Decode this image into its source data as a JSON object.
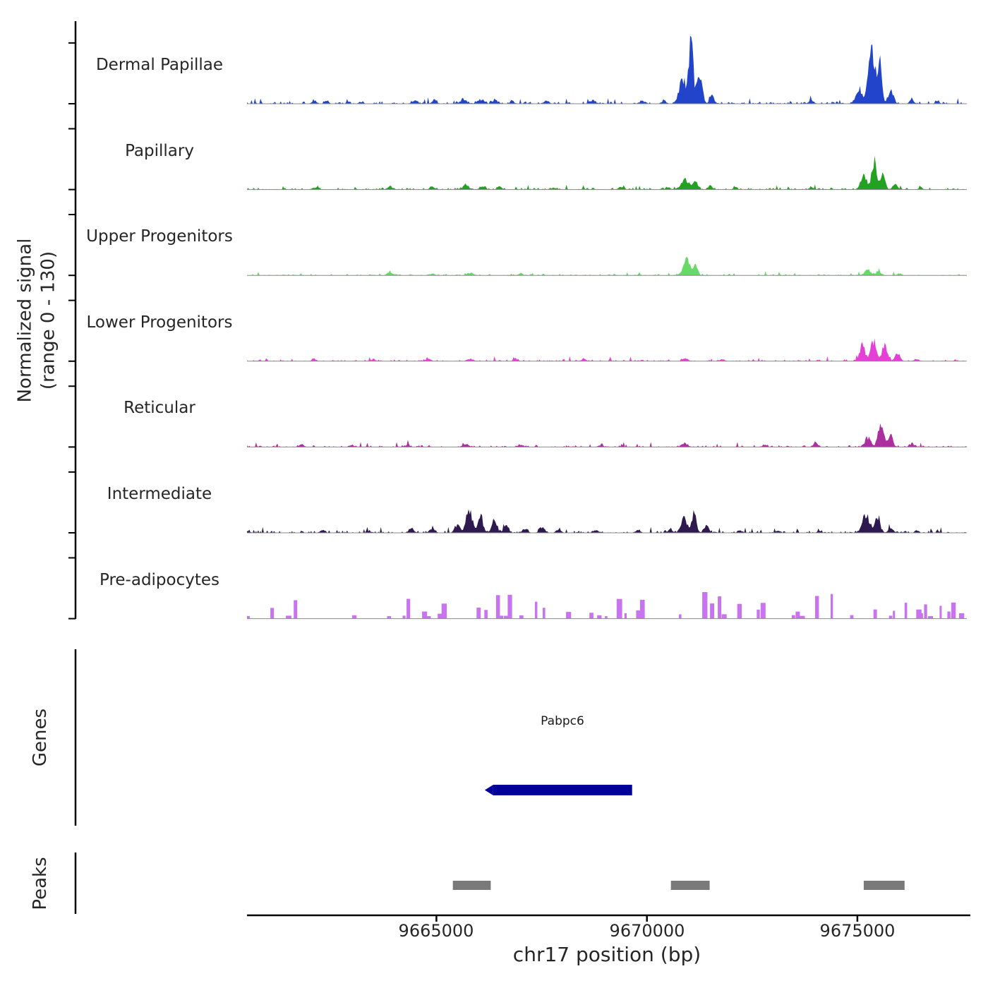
{
  "chart_data": {
    "type": "area",
    "title": "",
    "x_axis": {
      "label": "chr17 position (bp)",
      "range_bp": [
        9660500,
        9677600
      ],
      "ticks": [
        {
          "bp": 9665000,
          "label": "9665000"
        },
        {
          "bp": 9670000,
          "label": "9670000"
        },
        {
          "bp": 9675000,
          "label": "9675000"
        }
      ]
    },
    "y_axis": {
      "label": "Normalized signal\n(range 0 - 130)",
      "range": [
        0,
        130
      ],
      "tick_values": [
        0,
        100
      ]
    },
    "tracks": [
      {
        "name": "Dermal Papillae",
        "color": "#2244cb",
        "noise_amp": 3.5,
        "noise_density": 0.5,
        "bumps": [
          [
            9662100,
            50,
            4
          ],
          [
            9662400,
            40,
            5
          ],
          [
            9663200,
            50,
            3
          ],
          [
            9664500,
            60,
            5
          ],
          [
            9664950,
            50,
            6
          ],
          [
            9665650,
            80,
            6
          ],
          [
            9666050,
            70,
            7
          ],
          [
            9666400,
            60,
            6
          ],
          [
            9666800,
            50,
            4
          ],
          [
            9667600,
            60,
            4
          ],
          [
            9668700,
            70,
            4
          ],
          [
            9669900,
            60,
            4
          ],
          [
            9670400,
            50,
            5
          ],
          [
            9670850,
            80,
            40
          ],
          [
            9671050,
            55,
            92
          ],
          [
            9671250,
            60,
            50
          ],
          [
            9671550,
            50,
            12
          ],
          [
            9673900,
            60,
            5
          ],
          [
            9675050,
            70,
            25
          ],
          [
            9675330,
            65,
            115
          ],
          [
            9675520,
            55,
            70
          ],
          [
            9675800,
            55,
            22
          ],
          [
            9676300,
            50,
            6
          ],
          [
            9676900,
            45,
            4
          ]
        ]
      },
      {
        "name": "Papillary",
        "color": "#22a122",
        "noise_amp": 3,
        "noise_density": 0.5,
        "bumps": [
          [
            9662100,
            50,
            3
          ],
          [
            9663900,
            60,
            5
          ],
          [
            9664900,
            60,
            4
          ],
          [
            9665700,
            80,
            6
          ],
          [
            9666100,
            60,
            5
          ],
          [
            9666500,
            50,
            4
          ],
          [
            9667800,
            60,
            3
          ],
          [
            9669400,
            60,
            4
          ],
          [
            9670500,
            50,
            4
          ],
          [
            9670900,
            90,
            16
          ],
          [
            9671150,
            60,
            12
          ],
          [
            9671500,
            50,
            6
          ],
          [
            9672100,
            50,
            4
          ],
          [
            9673900,
            50,
            3
          ],
          [
            9675150,
            70,
            22
          ],
          [
            9675400,
            60,
            48
          ],
          [
            9675600,
            55,
            26
          ],
          [
            9675900,
            50,
            10
          ],
          [
            9676500,
            45,
            4
          ]
        ]
      },
      {
        "name": "Upper Progenitors",
        "color": "#66d966",
        "noise_amp": 2.2,
        "noise_density": 0.42,
        "bumps": [
          [
            9663900,
            60,
            5
          ],
          [
            9664900,
            50,
            3
          ],
          [
            9665800,
            70,
            4
          ],
          [
            9667000,
            50,
            3
          ],
          [
            9670950,
            80,
            26
          ],
          [
            9671150,
            55,
            14
          ],
          [
            9675250,
            70,
            9
          ],
          [
            9675500,
            55,
            7
          ],
          [
            9676000,
            45,
            3
          ]
        ]
      },
      {
        "name": "Lower Progenitors",
        "color": "#e63fd8",
        "noise_amp": 2.8,
        "noise_density": 0.45,
        "bumps": [
          [
            9662100,
            45,
            3
          ],
          [
            9663500,
            50,
            3
          ],
          [
            9664800,
            55,
            4
          ],
          [
            9665800,
            60,
            4
          ],
          [
            9666900,
            50,
            3
          ],
          [
            9668500,
            50,
            3
          ],
          [
            9670900,
            60,
            4
          ],
          [
            9671800,
            45,
            3
          ],
          [
            9675120,
            65,
            26
          ],
          [
            9675380,
            60,
            36
          ],
          [
            9675650,
            60,
            30
          ],
          [
            9675950,
            55,
            14
          ],
          [
            9676400,
            45,
            4
          ]
        ]
      },
      {
        "name": "Reticular",
        "color": "#ab2f9e",
        "noise_amp": 2.8,
        "noise_density": 0.45,
        "bumps": [
          [
            9661800,
            45,
            4
          ],
          [
            9663000,
            45,
            3
          ],
          [
            9664300,
            50,
            3
          ],
          [
            9665700,
            60,
            4
          ],
          [
            9667000,
            55,
            4
          ],
          [
            9668900,
            50,
            3
          ],
          [
            9670900,
            70,
            6
          ],
          [
            9672800,
            50,
            4
          ],
          [
            9674000,
            55,
            6
          ],
          [
            9675250,
            70,
            15
          ],
          [
            9675560,
            60,
            42
          ],
          [
            9675780,
            50,
            22
          ],
          [
            9676300,
            45,
            5
          ]
        ]
      },
      {
        "name": "Intermediate",
        "color": "#2e1a4f",
        "noise_amp": 3.5,
        "noise_density": 0.55,
        "bumps": [
          [
            9662300,
            50,
            4
          ],
          [
            9663400,
            50,
            3
          ],
          [
            9664400,
            60,
            6
          ],
          [
            9664900,
            55,
            7
          ],
          [
            9665500,
            60,
            12
          ],
          [
            9665780,
            70,
            38
          ],
          [
            9666050,
            55,
            26
          ],
          [
            9666380,
            60,
            20
          ],
          [
            9666650,
            55,
            12
          ],
          [
            9667100,
            55,
            7
          ],
          [
            9667500,
            55,
            9
          ],
          [
            9667900,
            50,
            6
          ],
          [
            9668800,
            55,
            4
          ],
          [
            9669800,
            50,
            4
          ],
          [
            9670550,
            50,
            6
          ],
          [
            9670880,
            70,
            24
          ],
          [
            9671120,
            55,
            30
          ],
          [
            9671420,
            55,
            11
          ],
          [
            9672200,
            45,
            3
          ],
          [
            9673100,
            45,
            3
          ],
          [
            9674100,
            45,
            3
          ],
          [
            9675200,
            80,
            30
          ],
          [
            9675480,
            60,
            26
          ],
          [
            9675800,
            50,
            8
          ],
          [
            9676400,
            45,
            3
          ]
        ]
      },
      {
        "name": "Pre-adipocytes",
        "color": "#c873f0",
        "style": "bars",
        "bar_density": 0.3,
        "bar_height_range": [
          4,
          45
        ]
      }
    ],
    "genes": {
      "section_label": "Genes",
      "items": [
        {
          "name": "Pabpc6",
          "start": 9666350,
          "end": 9669650,
          "strand": "-",
          "color": "#000099"
        }
      ]
    },
    "peaks": {
      "section_label": "Peaks",
      "color": "#7a7a7a",
      "items": [
        {
          "start": 9665390,
          "end": 9666290
        },
        {
          "start": 9670570,
          "end": 9671490
        },
        {
          "start": 9675150,
          "end": 9676120
        }
      ]
    }
  }
}
